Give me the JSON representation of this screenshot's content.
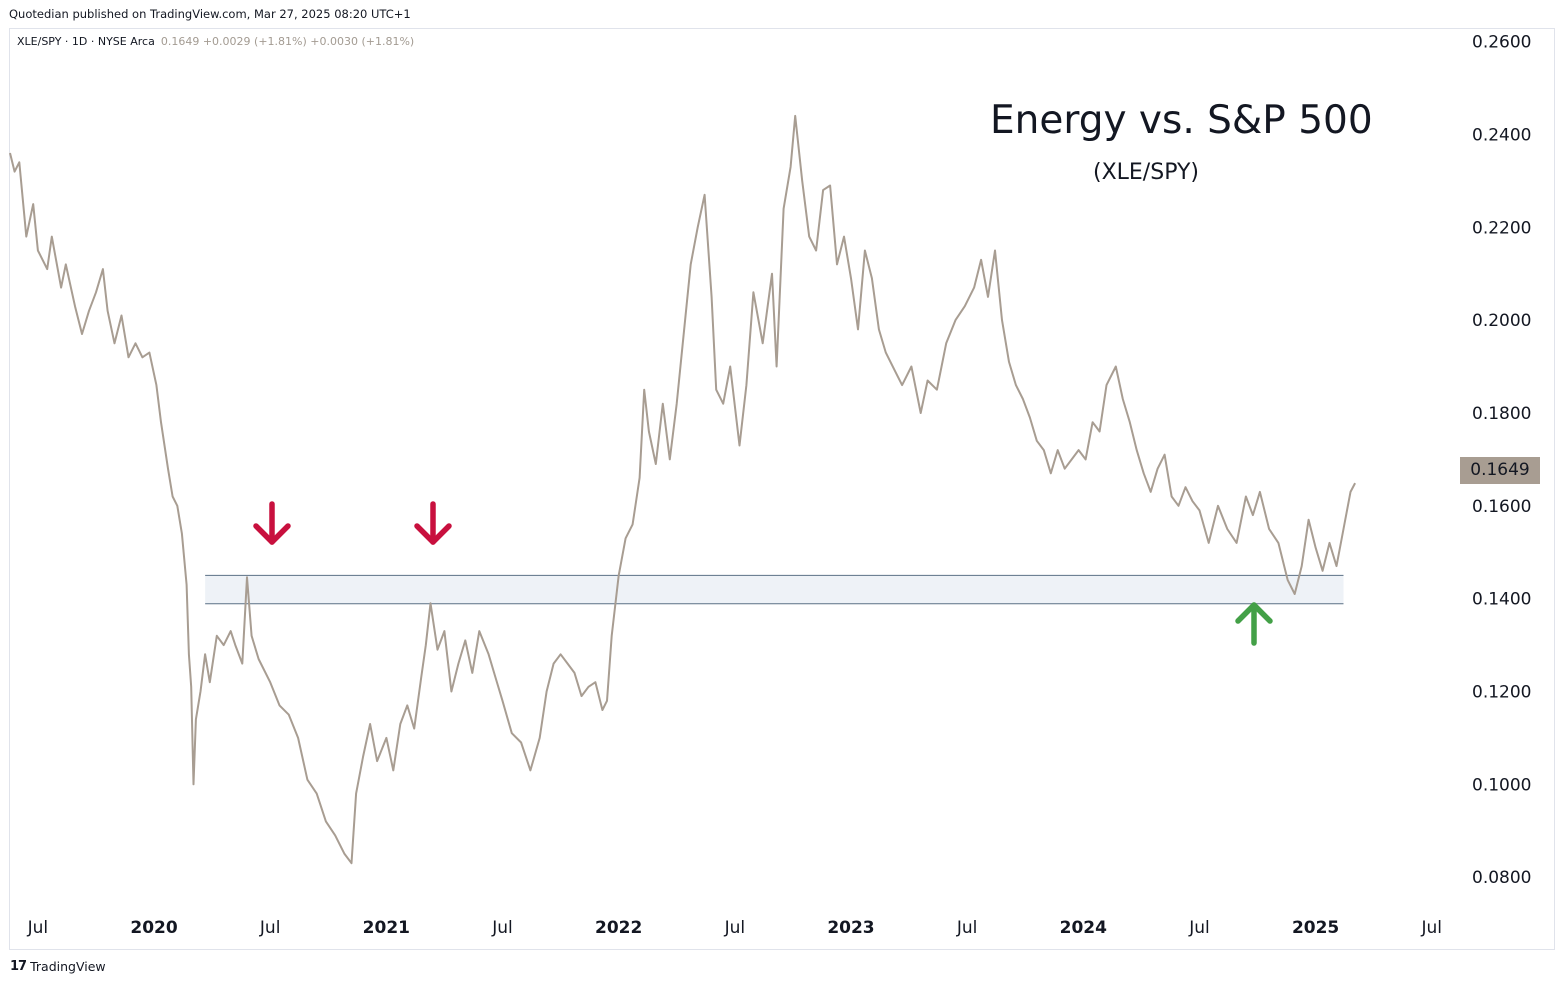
{
  "header": {
    "publisher_text": "Quotedian published on TradingView.com, Mar 27, 2025 08:20 UTC+1"
  },
  "legend": {
    "symbol": "XLE/SPY · 1D · NYSE Arca",
    "values": "0.1649 +0.0029 (+1.81%) +0.0030 (+1.81%)"
  },
  "annotations": {
    "title": "Energy vs. S&P 500",
    "subtitle": "(XLE/SPY)",
    "down_arrow_color": "#c8103e",
    "up_arrow_color": "#43a047",
    "zone_color": "#eef2f7",
    "zone_border_color": "#5b7186"
  },
  "last_price_badge": "0.1649",
  "footer": {
    "brand": "TradingView",
    "logo_text": "17"
  },
  "colors": {
    "line": "#a89d92",
    "badge": "#a89d92"
  },
  "chart_data": {
    "type": "line",
    "x_ticks": [
      {
        "label": "Jul",
        "x": 2019.5,
        "bold": false
      },
      {
        "label": "2020",
        "x": 2020.0,
        "bold": true
      },
      {
        "label": "Jul",
        "x": 2020.5,
        "bold": false
      },
      {
        "label": "2021",
        "x": 2021.0,
        "bold": true
      },
      {
        "label": "Jul",
        "x": 2021.5,
        "bold": false
      },
      {
        "label": "2022",
        "x": 2022.0,
        "bold": true
      },
      {
        "label": "Jul",
        "x": 2022.5,
        "bold": false
      },
      {
        "label": "2023",
        "x": 2023.0,
        "bold": true
      },
      {
        "label": "Jul",
        "x": 2023.5,
        "bold": false
      },
      {
        "label": "2024",
        "x": 2024.0,
        "bold": true
      },
      {
        "label": "Jul",
        "x": 2024.5,
        "bold": false
      },
      {
        "label": "2025",
        "x": 2025.0,
        "bold": true
      },
      {
        "label": "Jul",
        "x": 2025.5,
        "bold": false
      }
    ],
    "y_ticks": [
      "0.0800",
      "0.1000",
      "0.1200",
      "0.1400",
      "0.1600",
      "0.1800",
      "0.2000",
      "0.2200",
      "0.2400",
      "0.2600"
    ],
    "ylim": [
      0.074,
      0.2625
    ],
    "xlim": [
      2019.38,
      2025.6
    ],
    "support_zone": [
      0.1389,
      0.145
    ],
    "zone_x": [
      2020.22,
      2025.12
    ],
    "series": [
      {
        "values": [
          [
            2019.38,
            0.236
          ],
          [
            2019.4,
            0.232
          ],
          [
            2019.42,
            0.234
          ],
          [
            2019.45,
            0.218
          ],
          [
            2019.48,
            0.225
          ],
          [
            2019.5,
            0.215
          ],
          [
            2019.54,
            0.211
          ],
          [
            2019.56,
            0.218
          ],
          [
            2019.6,
            0.207
          ],
          [
            2019.62,
            0.212
          ],
          [
            2019.66,
            0.203
          ],
          [
            2019.69,
            0.197
          ],
          [
            2019.72,
            0.202
          ],
          [
            2019.75,
            0.206
          ],
          [
            2019.78,
            0.211
          ],
          [
            2019.8,
            0.202
          ],
          [
            2019.83,
            0.195
          ],
          [
            2019.86,
            0.201
          ],
          [
            2019.89,
            0.192
          ],
          [
            2019.92,
            0.195
          ],
          [
            2019.95,
            0.192
          ],
          [
            2019.98,
            0.193
          ],
          [
            2020.01,
            0.186
          ],
          [
            2020.03,
            0.178
          ],
          [
            2020.06,
            0.168
          ],
          [
            2020.08,
            0.162
          ],
          [
            2020.1,
            0.16
          ],
          [
            2020.12,
            0.154
          ],
          [
            2020.14,
            0.143
          ],
          [
            2020.15,
            0.128
          ],
          [
            2020.16,
            0.121
          ],
          [
            2020.17,
            0.1
          ],
          [
            2020.18,
            0.114
          ],
          [
            2020.2,
            0.12
          ],
          [
            2020.22,
            0.128
          ],
          [
            2020.24,
            0.122
          ],
          [
            2020.27,
            0.132
          ],
          [
            2020.3,
            0.13
          ],
          [
            2020.33,
            0.133
          ],
          [
            2020.35,
            0.13
          ],
          [
            2020.38,
            0.126
          ],
          [
            2020.4,
            0.1446
          ],
          [
            2020.42,
            0.132
          ],
          [
            2020.45,
            0.127
          ],
          [
            2020.5,
            0.122
          ],
          [
            2020.54,
            0.117
          ],
          [
            2020.58,
            0.115
          ],
          [
            2020.62,
            0.11
          ],
          [
            2020.66,
            0.101
          ],
          [
            2020.7,
            0.098
          ],
          [
            2020.74,
            0.092
          ],
          [
            2020.78,
            0.089
          ],
          [
            2020.82,
            0.085
          ],
          [
            2020.85,
            0.083
          ],
          [
            2020.87,
            0.098
          ],
          [
            2020.9,
            0.106
          ],
          [
            2020.93,
            0.113
          ],
          [
            2020.96,
            0.105
          ],
          [
            2021.0,
            0.11
          ],
          [
            2021.03,
            0.103
          ],
          [
            2021.06,
            0.113
          ],
          [
            2021.09,
            0.117
          ],
          [
            2021.12,
            0.112
          ],
          [
            2021.15,
            0.123
          ],
          [
            2021.17,
            0.13
          ],
          [
            2021.19,
            0.139
          ],
          [
            2021.22,
            0.129
          ],
          [
            2021.25,
            0.133
          ],
          [
            2021.28,
            0.12
          ],
          [
            2021.31,
            0.126
          ],
          [
            2021.34,
            0.131
          ],
          [
            2021.37,
            0.124
          ],
          [
            2021.4,
            0.133
          ],
          [
            2021.44,
            0.128
          ],
          [
            2021.47,
            0.123
          ],
          [
            2021.5,
            0.118
          ],
          [
            2021.54,
            0.111
          ],
          [
            2021.58,
            0.109
          ],
          [
            2021.62,
            0.103
          ],
          [
            2021.66,
            0.11
          ],
          [
            2021.69,
            0.12
          ],
          [
            2021.72,
            0.126
          ],
          [
            2021.75,
            0.128
          ],
          [
            2021.78,
            0.126
          ],
          [
            2021.81,
            0.124
          ],
          [
            2021.84,
            0.119
          ],
          [
            2021.87,
            0.121
          ],
          [
            2021.9,
            0.122
          ],
          [
            2021.93,
            0.116
          ],
          [
            2021.95,
            0.118
          ],
          [
            2021.97,
            0.132
          ],
          [
            2022.0,
            0.145
          ],
          [
            2022.03,
            0.153
          ],
          [
            2022.06,
            0.156
          ],
          [
            2022.09,
            0.166
          ],
          [
            2022.11,
            0.185
          ],
          [
            2022.13,
            0.176
          ],
          [
            2022.16,
            0.169
          ],
          [
            2022.19,
            0.182
          ],
          [
            2022.22,
            0.17
          ],
          [
            2022.25,
            0.182
          ],
          [
            2022.28,
            0.197
          ],
          [
            2022.31,
            0.212
          ],
          [
            2022.34,
            0.22
          ],
          [
            2022.37,
            0.227
          ],
          [
            2022.4,
            0.205
          ],
          [
            2022.42,
            0.185
          ],
          [
            2022.45,
            0.182
          ],
          [
            2022.48,
            0.19
          ],
          [
            2022.52,
            0.173
          ],
          [
            2022.55,
            0.186
          ],
          [
            2022.58,
            0.206
          ],
          [
            2022.62,
            0.195
          ],
          [
            2022.66,
            0.21
          ],
          [
            2022.68,
            0.19
          ],
          [
            2022.71,
            0.224
          ],
          [
            2022.74,
            0.233
          ],
          [
            2022.76,
            0.244
          ],
          [
            2022.79,
            0.23
          ],
          [
            2022.82,
            0.218
          ],
          [
            2022.85,
            0.215
          ],
          [
            2022.88,
            0.228
          ],
          [
            2022.91,
            0.229
          ],
          [
            2022.94,
            0.212
          ],
          [
            2022.97,
            0.218
          ],
          [
            2023.0,
            0.209
          ],
          [
            2023.03,
            0.198
          ],
          [
            2023.06,
            0.215
          ],
          [
            2023.09,
            0.209
          ],
          [
            2023.12,
            0.198
          ],
          [
            2023.15,
            0.193
          ],
          [
            2023.19,
            0.189
          ],
          [
            2023.22,
            0.186
          ],
          [
            2023.26,
            0.19
          ],
          [
            2023.3,
            0.18
          ],
          [
            2023.33,
            0.187
          ],
          [
            2023.37,
            0.185
          ],
          [
            2023.41,
            0.195
          ],
          [
            2023.45,
            0.2
          ],
          [
            2023.49,
            0.203
          ],
          [
            2023.53,
            0.207
          ],
          [
            2023.56,
            0.213
          ],
          [
            2023.59,
            0.205
          ],
          [
            2023.62,
            0.215
          ],
          [
            2023.65,
            0.2
          ],
          [
            2023.68,
            0.191
          ],
          [
            2023.71,
            0.186
          ],
          [
            2023.74,
            0.183
          ],
          [
            2023.77,
            0.179
          ],
          [
            2023.8,
            0.174
          ],
          [
            2023.83,
            0.172
          ],
          [
            2023.86,
            0.167
          ],
          [
            2023.89,
            0.172
          ],
          [
            2023.92,
            0.168
          ],
          [
            2023.95,
            0.17
          ],
          [
            2023.98,
            0.172
          ],
          [
            2024.01,
            0.17
          ],
          [
            2024.04,
            0.178
          ],
          [
            2024.07,
            0.176
          ],
          [
            2024.1,
            0.186
          ],
          [
            2024.14,
            0.19
          ],
          [
            2024.17,
            0.183
          ],
          [
            2024.2,
            0.178
          ],
          [
            2024.23,
            0.172
          ],
          [
            2024.26,
            0.167
          ],
          [
            2024.29,
            0.163
          ],
          [
            2024.32,
            0.168
          ],
          [
            2024.35,
            0.171
          ],
          [
            2024.38,
            0.162
          ],
          [
            2024.41,
            0.16
          ],
          [
            2024.44,
            0.164
          ],
          [
            2024.47,
            0.161
          ],
          [
            2024.5,
            0.159
          ],
          [
            2024.54,
            0.152
          ],
          [
            2024.58,
            0.16
          ],
          [
            2024.62,
            0.155
          ],
          [
            2024.66,
            0.152
          ],
          [
            2024.7,
            0.162
          ],
          [
            2024.73,
            0.158
          ],
          [
            2024.76,
            0.163
          ],
          [
            2024.8,
            0.155
          ],
          [
            2024.84,
            0.152
          ],
          [
            2024.88,
            0.144
          ],
          [
            2024.91,
            0.141
          ],
          [
            2024.94,
            0.147
          ],
          [
            2024.97,
            0.157
          ],
          [
            2025.0,
            0.151
          ],
          [
            2025.03,
            0.146
          ],
          [
            2025.06,
            0.152
          ],
          [
            2025.09,
            0.147
          ],
          [
            2025.12,
            0.155
          ],
          [
            2025.15,
            0.163
          ],
          [
            2025.17,
            0.1649
          ]
        ]
      }
    ]
  }
}
